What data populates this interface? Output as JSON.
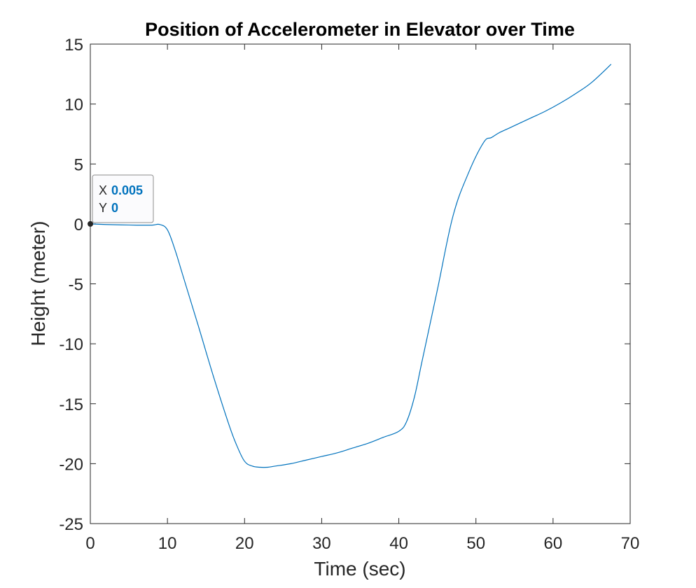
{
  "chart_data": {
    "type": "line",
    "title": "Position of Accelerometer in Elevator over Time",
    "xlabel": "Time (sec)",
    "ylabel": "Height (meter)",
    "xlim": [
      0,
      70
    ],
    "ylim": [
      -25,
      15
    ],
    "xticks": [
      0,
      10,
      20,
      30,
      40,
      50,
      60,
      70
    ],
    "yticks": [
      -25,
      -20,
      -15,
      -10,
      -5,
      0,
      5,
      10,
      15
    ],
    "xtick_labels": [
      "0",
      "10",
      "20",
      "30",
      "40",
      "50",
      "60",
      "70"
    ],
    "ytick_labels": [
      "-25",
      "-20",
      "-15",
      "-10",
      "-5",
      "0",
      "5",
      "10",
      "15"
    ],
    "grid": false,
    "colors": {
      "line": "#0072BD",
      "axis": "#262626",
      "datatip_value": "#0072BD",
      "datatip_marker": "#262626",
      "datatip_border": "#8c8c8c",
      "datatip_background": "#fbfbfd"
    },
    "series": [
      {
        "x": [
          0.005,
          2,
          4,
          6,
          8,
          9,
          10,
          11,
          12,
          14,
          16,
          18,
          19,
          20,
          21,
          22,
          23,
          24,
          26,
          28,
          30,
          32,
          34,
          36,
          38,
          40,
          41,
          42,
          43,
          45,
          47,
          49,
          51,
          52,
          53,
          54,
          55,
          57,
          59,
          61,
          63,
          65,
          67.5
        ],
        "y": [
          0,
          -0.05,
          -0.08,
          -0.1,
          -0.1,
          -0.05,
          -0.5,
          -2.2,
          -4.3,
          -8.5,
          -12.8,
          -16.8,
          -18.5,
          -19.8,
          -20.2,
          -20.3,
          -20.3,
          -20.2,
          -20.0,
          -19.7,
          -19.4,
          -19.1,
          -18.7,
          -18.3,
          -17.8,
          -17.3,
          -16.5,
          -14.5,
          -11.5,
          -5.5,
          0.6,
          4.2,
          6.8,
          7.2,
          7.6,
          7.9,
          8.2,
          8.8,
          9.4,
          10.1,
          10.9,
          11.8,
          13.3
        ]
      }
    ],
    "datatip": {
      "x_label": "X",
      "x_value": "0.005",
      "y_label": "Y",
      "y_value": "0",
      "anchor": [
        0.005,
        0
      ]
    }
  }
}
